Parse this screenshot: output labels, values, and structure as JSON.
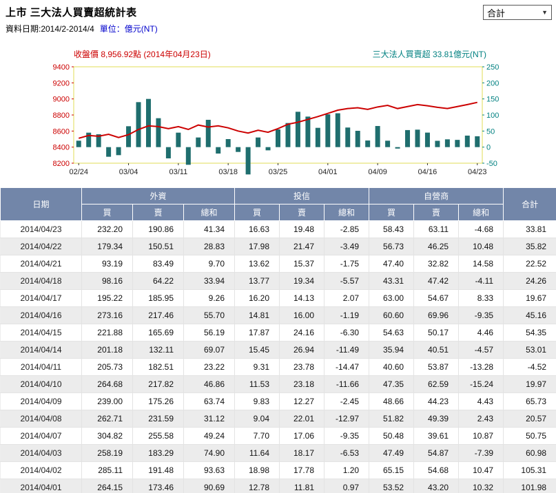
{
  "header": {
    "title": "上市 三大法人買賣超統計表",
    "date_range_label": "資料日期:2014/2-2014/4",
    "unit_label": "單位：億元(NT)",
    "dropdown_value": "合計",
    "dropdown_arrow": "▼"
  },
  "chart_data": {
    "type": "bar",
    "price_label": "收盤價 8,956.92點 (2014年04月23日)",
    "flow_label": "三大法人買賣超 33.81億元(NT)",
    "price_color": "#cc0000",
    "bar_color": "#1f6e6e",
    "flow_color": "#008080",
    "frame_color": "#e0dd55",
    "left_axis": {
      "label": "收盤價",
      "ticks": [
        9400,
        9200,
        9000,
        8800,
        8600,
        8400,
        8200
      ],
      "range": [
        8200,
        9400
      ]
    },
    "right_axis": {
      "label": "三大法人買賣超(億元NT)",
      "ticks": [
        250,
        200,
        150,
        100,
        50,
        0,
        -50
      ],
      "range": [
        -50,
        250
      ]
    },
    "x_tick_labels": [
      "02/24",
      "03/04",
      "03/11",
      "03/18",
      "03/25",
      "04/01",
      "04/09",
      "04/16",
      "04/23"
    ],
    "x_tick_every": 5,
    "dates": [
      "02/24",
      "02/25",
      "02/26",
      "02/27",
      "03/03",
      "03/04",
      "03/05",
      "03/06",
      "03/07",
      "03/10",
      "03/11",
      "03/12",
      "03/13",
      "03/14",
      "03/17",
      "03/18",
      "03/19",
      "03/20",
      "03/21",
      "03/24",
      "03/25",
      "03/26",
      "03/27",
      "03/28",
      "03/31",
      "04/01",
      "04/02",
      "04/03",
      "04/07",
      "04/08",
      "04/09",
      "04/10",
      "04/11",
      "04/14",
      "04/15",
      "04/16",
      "04/17",
      "04/18",
      "04/21",
      "04/22",
      "04/23"
    ],
    "series": [
      {
        "name": "三大法人買賣超",
        "values": [
          20,
          45,
          40,
          -30,
          -25,
          65,
          140,
          150,
          90,
          -35,
          45,
          -55,
          30,
          85,
          -20,
          25,
          -15,
          -85,
          30,
          -10,
          55,
          75,
          110,
          95,
          60,
          101.98,
          105.31,
          60.98,
          50.75,
          20.57,
          65.73,
          19.97,
          -4.52,
          53.01,
          54.35,
          45.16,
          19.67,
          24.26,
          22.52,
          35.82,
          33.81
        ]
      },
      {
        "name": "收盤價",
        "values": [
          8510,
          8545,
          8535,
          8560,
          8520,
          8555,
          8620,
          8665,
          8655,
          8630,
          8655,
          8620,
          8675,
          8650,
          8665,
          8640,
          8600,
          8575,
          8610,
          8585,
          8630,
          8685,
          8710,
          8745,
          8780,
          8820,
          8860,
          8880,
          8890,
          8870,
          8900,
          8920,
          8880,
          8905,
          8930,
          8915,
          8895,
          8880,
          8905,
          8930,
          8956.92
        ]
      }
    ]
  },
  "table": {
    "col_date": "日期",
    "col_total": "合計",
    "groups": [
      {
        "label": "外資"
      },
      {
        "label": "投信"
      },
      {
        "label": "自營商"
      }
    ],
    "sub_headers": [
      "買",
      "賣",
      "總和"
    ],
    "rows": [
      {
        "date": "2014/04/23",
        "values": [
          "232.20",
          "190.86",
          "41.34",
          "16.63",
          "19.48",
          "-2.85",
          "58.43",
          "63.11",
          "-4.68",
          "33.81"
        ]
      },
      {
        "date": "2014/04/22",
        "values": [
          "179.34",
          "150.51",
          "28.83",
          "17.98",
          "21.47",
          "-3.49",
          "56.73",
          "46.25",
          "10.48",
          "35.82"
        ]
      },
      {
        "date": "2014/04/21",
        "values": [
          "93.19",
          "83.49",
          "9.70",
          "13.62",
          "15.37",
          "-1.75",
          "47.40",
          "32.82",
          "14.58",
          "22.52"
        ]
      },
      {
        "date": "2014/04/18",
        "values": [
          "98.16",
          "64.22",
          "33.94",
          "13.77",
          "19.34",
          "-5.57",
          "43.31",
          "47.42",
          "-4.11",
          "24.26"
        ]
      },
      {
        "date": "2014/04/17",
        "values": [
          "195.22",
          "185.95",
          "9.26",
          "16.20",
          "14.13",
          "2.07",
          "63.00",
          "54.67",
          "8.33",
          "19.67"
        ]
      },
      {
        "date": "2014/04/16",
        "values": [
          "273.16",
          "217.46",
          "55.70",
          "14.81",
          "16.00",
          "-1.19",
          "60.60",
          "69.96",
          "-9.35",
          "45.16"
        ]
      },
      {
        "date": "2014/04/15",
        "values": [
          "221.88",
          "165.69",
          "56.19",
          "17.87",
          "24.16",
          "-6.30",
          "54.63",
          "50.17",
          "4.46",
          "54.35"
        ]
      },
      {
        "date": "2014/04/14",
        "values": [
          "201.18",
          "132.11",
          "69.07",
          "15.45",
          "26.94",
          "-11.49",
          "35.94",
          "40.51",
          "-4.57",
          "53.01"
        ]
      },
      {
        "date": "2014/04/11",
        "values": [
          "205.73",
          "182.51",
          "23.22",
          "9.31",
          "23.78",
          "-14.47",
          "40.60",
          "53.87",
          "-13.28",
          "-4.52"
        ]
      },
      {
        "date": "2014/04/10",
        "values": [
          "264.68",
          "217.82",
          "46.86",
          "11.53",
          "23.18",
          "-11.66",
          "47.35",
          "62.59",
          "-15.24",
          "19.97"
        ]
      },
      {
        "date": "2014/04/09",
        "values": [
          "239.00",
          "175.26",
          "63.74",
          "9.83",
          "12.27",
          "-2.45",
          "48.66",
          "44.23",
          "4.43",
          "65.73"
        ]
      },
      {
        "date": "2014/04/08",
        "values": [
          "262.71",
          "231.59",
          "31.12",
          "9.04",
          "22.01",
          "-12.97",
          "51.82",
          "49.39",
          "2.43",
          "20.57"
        ]
      },
      {
        "date": "2014/04/07",
        "values": [
          "304.82",
          "255.58",
          "49.24",
          "7.70",
          "17.06",
          "-9.35",
          "50.48",
          "39.61",
          "10.87",
          "50.75"
        ]
      },
      {
        "date": "2014/04/03",
        "values": [
          "258.19",
          "183.29",
          "74.90",
          "11.64",
          "18.17",
          "-6.53",
          "47.49",
          "54.87",
          "-7.39",
          "60.98"
        ]
      },
      {
        "date": "2014/04/02",
        "values": [
          "285.11",
          "191.48",
          "93.63",
          "18.98",
          "17.78",
          "1.20",
          "65.15",
          "54.68",
          "10.47",
          "105.31"
        ]
      },
      {
        "date": "2014/04/01",
        "values": [
          "264.15",
          "173.46",
          "90.69",
          "12.78",
          "11.81",
          "0.97",
          "53.52",
          "43.20",
          "10.32",
          "101.98"
        ]
      }
    ]
  }
}
